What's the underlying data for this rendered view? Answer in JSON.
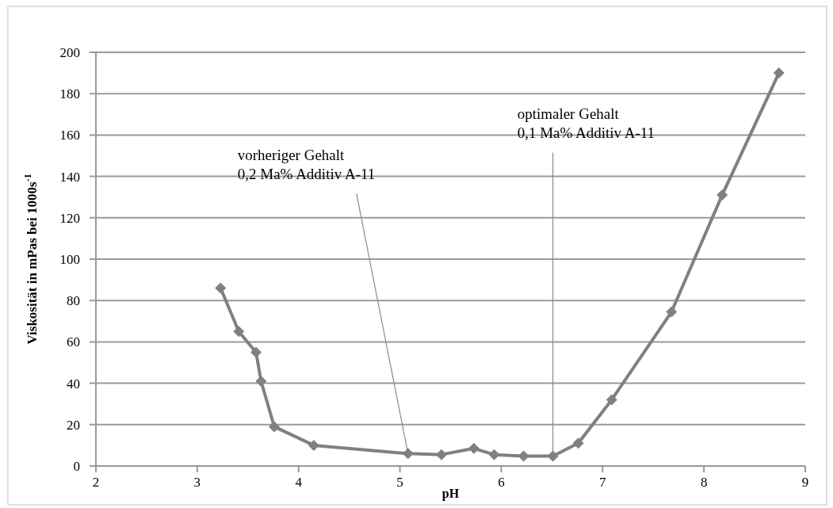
{
  "chart_data": {
    "type": "line",
    "xlabel": "pH",
    "ylabel": "Viskosität in mPas bei 1000s$^{-1}$",
    "x": [
      3.23,
      3.41,
      3.58,
      3.63,
      3.76,
      4.15,
      5.08,
      5.41,
      5.73,
      5.93,
      6.22,
      6.51,
      6.76,
      7.09,
      7.68,
      8.18,
      8.74
    ],
    "series": [
      {
        "color": "#808080",
        "values": [
          86,
          65,
          55,
          41,
          19,
          10,
          6,
          5.5,
          8.5,
          5.5,
          4.8,
          4.8,
          11,
          32,
          74.5,
          131,
          190
        ]
      }
    ],
    "xlim": [
      2,
      9
    ],
    "xticks": [
      2,
      3,
      4,
      5,
      6,
      7,
      8,
      9
    ],
    "ylim": [
      0,
      200
    ],
    "yticks": [
      0,
      20,
      40,
      60,
      80,
      100,
      120,
      140,
      160,
      180,
      200
    ],
    "grid": "y",
    "marker": "diamond",
    "line_style": "solid",
    "annotations": [
      {
        "text": "vorheriger Gehalt\n0,2 Ma% Additiv A-11",
        "x": 5.08,
        "y": 6
      },
      {
        "text": "optimaler Gehalt\n0,1 Ma% Additiv A-11",
        "x": 6.51,
        "y": 4.8
      }
    ]
  }
}
